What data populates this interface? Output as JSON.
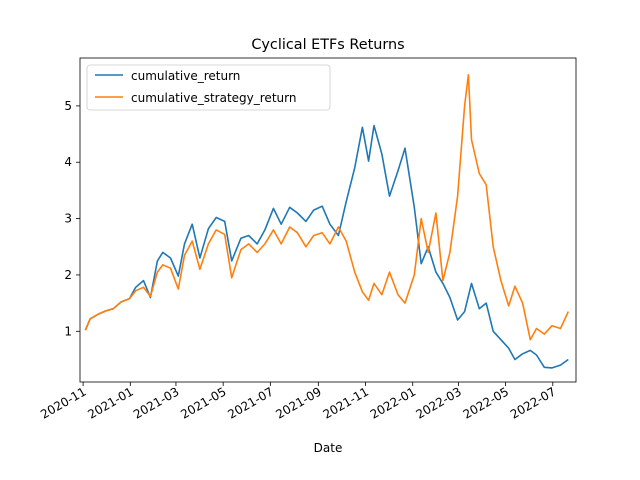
{
  "chart_data": {
    "type": "line",
    "title": "Cyclical ETFs Returns",
    "xlabel": "Date",
    "ylabel": "",
    "x_range": [
      "2020-10-28",
      "2022-07-31"
    ],
    "y_range": [
      0.1,
      5.85
    ],
    "x_ticks": [
      "2020-11",
      "2021-01",
      "2021-03",
      "2021-05",
      "2021-07",
      "2021-09",
      "2021-11",
      "2022-01",
      "2022-03",
      "2022-05",
      "2022-07"
    ],
    "y_ticks": [
      1,
      2,
      3,
      4,
      5
    ],
    "grid": false,
    "legend_position": "upper-left",
    "series": [
      {
        "name": "cumulative_return",
        "color": "#1f77b4",
        "points": [
          [
            "2020-11-04",
            1.02
          ],
          [
            "2020-11-10",
            1.22
          ],
          [
            "2020-11-20",
            1.3
          ],
          [
            "2020-11-30",
            1.36
          ],
          [
            "2020-12-10",
            1.4
          ],
          [
            "2020-12-20",
            1.52
          ],
          [
            "2020-12-31",
            1.58
          ],
          [
            "2021-01-08",
            1.78
          ],
          [
            "2021-01-18",
            1.9
          ],
          [
            "2021-01-27",
            1.6
          ],
          [
            "2021-02-05",
            2.25
          ],
          [
            "2021-02-12",
            2.4
          ],
          [
            "2021-02-22",
            2.3
          ],
          [
            "2021-03-04",
            1.98
          ],
          [
            "2021-03-12",
            2.55
          ],
          [
            "2021-03-22",
            2.9
          ],
          [
            "2021-04-01",
            2.3
          ],
          [
            "2021-04-12",
            2.82
          ],
          [
            "2021-04-22",
            3.02
          ],
          [
            "2021-05-03",
            2.95
          ],
          [
            "2021-05-12",
            2.25
          ],
          [
            "2021-05-24",
            2.65
          ],
          [
            "2021-06-03",
            2.7
          ],
          [
            "2021-06-14",
            2.55
          ],
          [
            "2021-06-24",
            2.8
          ],
          [
            "2021-07-05",
            3.18
          ],
          [
            "2021-07-15",
            2.9
          ],
          [
            "2021-07-26",
            3.2
          ],
          [
            "2021-08-05",
            3.1
          ],
          [
            "2021-08-16",
            2.95
          ],
          [
            "2021-08-26",
            3.15
          ],
          [
            "2021-09-06",
            3.22
          ],
          [
            "2021-09-16",
            2.9
          ],
          [
            "2021-09-27",
            2.7
          ],
          [
            "2021-10-07",
            3.3
          ],
          [
            "2021-10-18",
            3.9
          ],
          [
            "2021-10-28",
            4.62
          ],
          [
            "2021-11-05",
            4.02
          ],
          [
            "2021-11-12",
            4.65
          ],
          [
            "2021-11-22",
            4.15
          ],
          [
            "2021-12-02",
            3.4
          ],
          [
            "2021-12-13",
            3.85
          ],
          [
            "2021-12-22",
            4.25
          ],
          [
            "2022-01-03",
            3.2
          ],
          [
            "2022-01-12",
            2.2
          ],
          [
            "2022-01-21",
            2.5
          ],
          [
            "2022-01-31",
            2.05
          ],
          [
            "2022-02-09",
            1.85
          ],
          [
            "2022-02-18",
            1.6
          ],
          [
            "2022-02-28",
            1.2
          ],
          [
            "2022-03-09",
            1.35
          ],
          [
            "2022-03-18",
            1.85
          ],
          [
            "2022-03-28",
            1.4
          ],
          [
            "2022-04-06",
            1.5
          ],
          [
            "2022-04-15",
            1.0
          ],
          [
            "2022-04-25",
            0.85
          ],
          [
            "2022-05-05",
            0.7
          ],
          [
            "2022-05-13",
            0.5
          ],
          [
            "2022-05-23",
            0.6
          ],
          [
            "2022-06-02",
            0.66
          ],
          [
            "2022-06-10",
            0.58
          ],
          [
            "2022-06-20",
            0.36
          ],
          [
            "2022-06-30",
            0.35
          ],
          [
            "2022-07-11",
            0.4
          ],
          [
            "2022-07-21",
            0.5
          ]
        ]
      },
      {
        "name": "cumulative_strategy_return",
        "color": "#ff7f0e",
        "points": [
          [
            "2020-11-04",
            1.02
          ],
          [
            "2020-11-10",
            1.22
          ],
          [
            "2020-11-20",
            1.3
          ],
          [
            "2020-11-30",
            1.36
          ],
          [
            "2020-12-10",
            1.4
          ],
          [
            "2020-12-20",
            1.52
          ],
          [
            "2020-12-31",
            1.58
          ],
          [
            "2021-01-08",
            1.72
          ],
          [
            "2021-01-18",
            1.78
          ],
          [
            "2021-01-27",
            1.62
          ],
          [
            "2021-02-05",
            2.05
          ],
          [
            "2021-02-12",
            2.18
          ],
          [
            "2021-02-22",
            2.12
          ],
          [
            "2021-03-04",
            1.75
          ],
          [
            "2021-03-12",
            2.35
          ],
          [
            "2021-03-22",
            2.6
          ],
          [
            "2021-04-01",
            2.1
          ],
          [
            "2021-04-12",
            2.55
          ],
          [
            "2021-04-22",
            2.8
          ],
          [
            "2021-05-03",
            2.72
          ],
          [
            "2021-05-12",
            1.95
          ],
          [
            "2021-05-24",
            2.45
          ],
          [
            "2021-06-03",
            2.55
          ],
          [
            "2021-06-14",
            2.4
          ],
          [
            "2021-06-24",
            2.55
          ],
          [
            "2021-07-05",
            2.8
          ],
          [
            "2021-07-15",
            2.55
          ],
          [
            "2021-07-26",
            2.85
          ],
          [
            "2021-08-05",
            2.75
          ],
          [
            "2021-08-16",
            2.5
          ],
          [
            "2021-08-26",
            2.7
          ],
          [
            "2021-09-06",
            2.75
          ],
          [
            "2021-09-16",
            2.55
          ],
          [
            "2021-09-27",
            2.85
          ],
          [
            "2021-10-07",
            2.6
          ],
          [
            "2021-10-18",
            2.05
          ],
          [
            "2021-10-28",
            1.7
          ],
          [
            "2021-11-05",
            1.55
          ],
          [
            "2021-11-12",
            1.85
          ],
          [
            "2021-11-22",
            1.65
          ],
          [
            "2021-12-02",
            2.05
          ],
          [
            "2021-12-13",
            1.65
          ],
          [
            "2021-12-22",
            1.5
          ],
          [
            "2022-01-03",
            2.0
          ],
          [
            "2022-01-12",
            3.0
          ],
          [
            "2022-01-21",
            2.4
          ],
          [
            "2022-01-31",
            3.1
          ],
          [
            "2022-02-09",
            1.9
          ],
          [
            "2022-02-18",
            2.4
          ],
          [
            "2022-02-28",
            3.4
          ],
          [
            "2022-03-09",
            5.0
          ],
          [
            "2022-03-14",
            5.55
          ],
          [
            "2022-03-18",
            4.4
          ],
          [
            "2022-03-28",
            3.8
          ],
          [
            "2022-04-06",
            3.6
          ],
          [
            "2022-04-15",
            2.5
          ],
          [
            "2022-04-25",
            1.9
          ],
          [
            "2022-05-05",
            1.45
          ],
          [
            "2022-05-13",
            1.8
          ],
          [
            "2022-05-23",
            1.5
          ],
          [
            "2022-06-02",
            0.85
          ],
          [
            "2022-06-10",
            1.05
          ],
          [
            "2022-06-20",
            0.95
          ],
          [
            "2022-06-30",
            1.1
          ],
          [
            "2022-07-11",
            1.05
          ],
          [
            "2022-07-21",
            1.35
          ]
        ]
      }
    ]
  }
}
